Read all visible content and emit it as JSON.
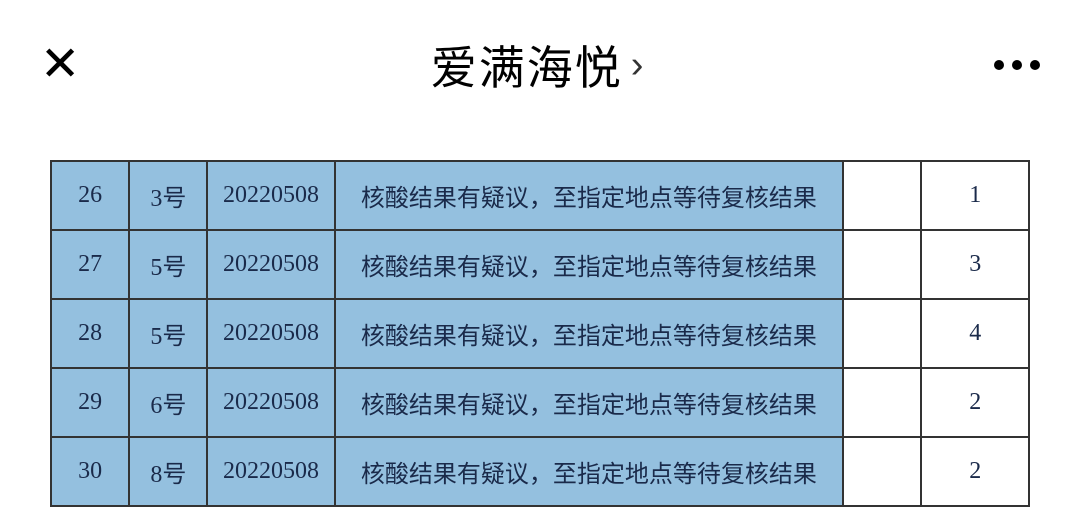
{
  "header": {
    "title": "爱满海悦"
  },
  "table": {
    "rows": [
      {
        "seq": "26",
        "num": "3号",
        "date": "20220508",
        "desc": "核酸结果有疑议，至指定地点等待复核结果",
        "count": "1"
      },
      {
        "seq": "27",
        "num": "5号",
        "date": "20220508",
        "desc": "核酸结果有疑议，至指定地点等待复核结果",
        "count": "3"
      },
      {
        "seq": "28",
        "num": "5号",
        "date": "20220508",
        "desc": "核酸结果有疑议，至指定地点等待复核结果",
        "count": "4"
      },
      {
        "seq": "29",
        "num": "6号",
        "date": "20220508",
        "desc": "核酸结果有疑议，至指定地点等待复核结果",
        "count": "2"
      },
      {
        "seq": "30",
        "num": "8号",
        "date": "20220508",
        "desc": "核酸结果有疑议，至指定地点等待复核结果",
        "count": "2"
      }
    ],
    "colors": {
      "row_bg": "#94c0df",
      "border": "#333333",
      "text": "#1a2a4a",
      "white_cell": "#ffffff"
    }
  }
}
